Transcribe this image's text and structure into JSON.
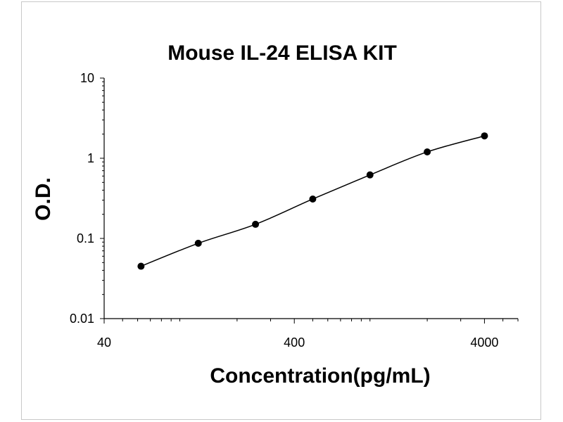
{
  "chart_data": {
    "type": "scatter",
    "title": "Mouse IL-24 ELISA KIT",
    "xlabel": "Concentration(pg/mL)",
    "ylabel": "O.D.",
    "xscale": "log",
    "yscale": "log",
    "xlim": [
      40,
      6000
    ],
    "ylim": [
      0.01,
      10
    ],
    "xticks": [
      {
        "value": 40,
        "label": "40"
      },
      {
        "value": 400,
        "label": "400"
      },
      {
        "value": 4000,
        "label": "4000"
      }
    ],
    "yticks": [
      {
        "value": 10,
        "label": "10"
      },
      {
        "value": 1,
        "label": "1"
      },
      {
        "value": 0.1,
        "label": "0.1"
      },
      {
        "value": 0.01,
        "label": "0.01"
      }
    ],
    "grid": false,
    "legend": "none",
    "fit_line": true,
    "series": [
      {
        "points": [
          {
            "x": 62.5,
            "y": 0.045
          },
          {
            "x": 125,
            "y": 0.087
          },
          {
            "x": 250,
            "y": 0.15
          },
          {
            "x": 500,
            "y": 0.31
          },
          {
            "x": 1000,
            "y": 0.62
          },
          {
            "x": 2000,
            "y": 1.2
          },
          {
            "x": 4000,
            "y": 1.9
          }
        ]
      }
    ],
    "colors": {
      "marker": "#000000",
      "line": "#000000",
      "axis": "#000000"
    }
  }
}
